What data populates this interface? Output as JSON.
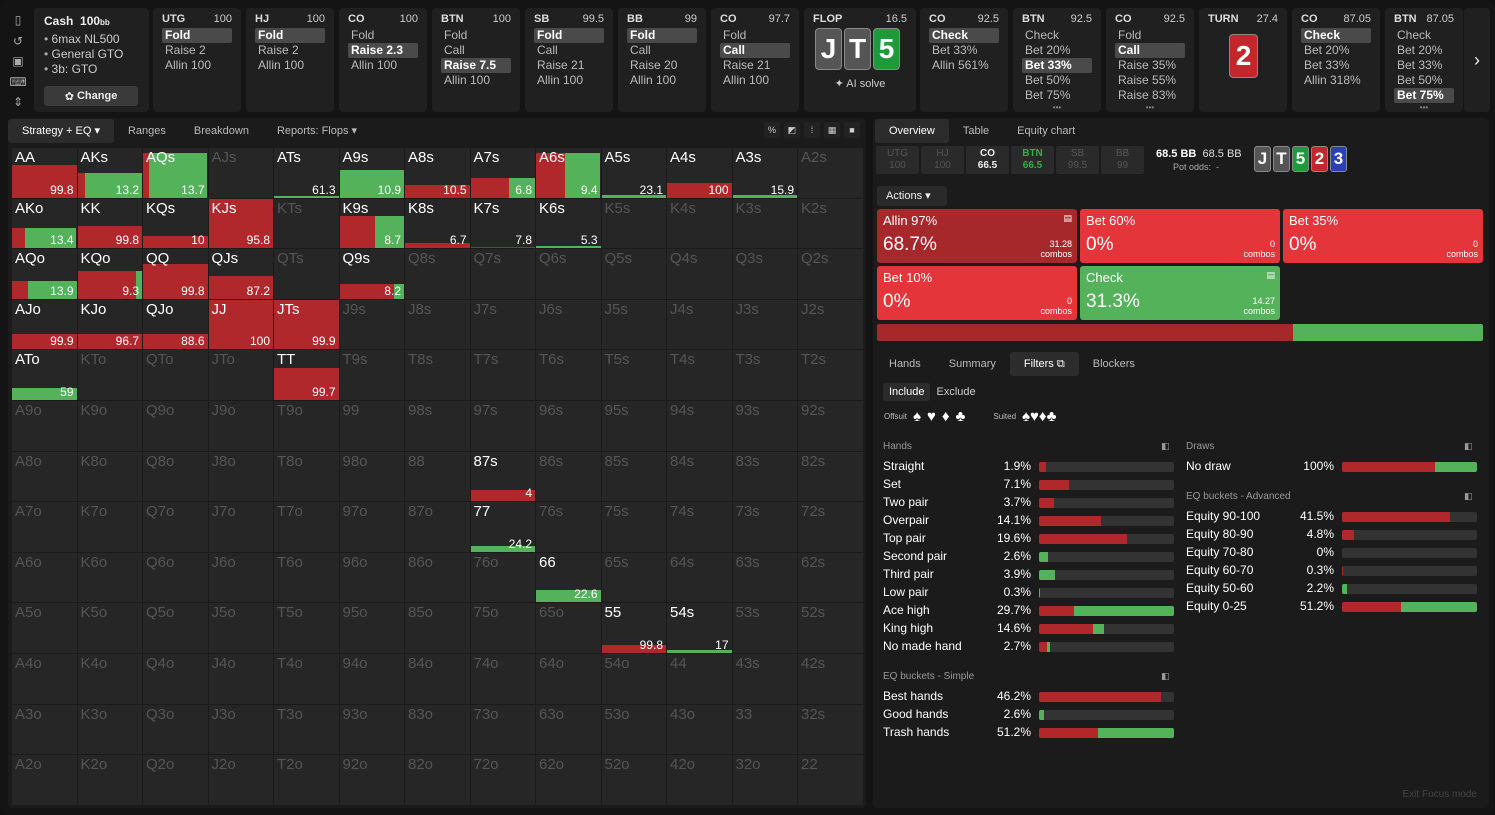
{
  "colors": {
    "raise": "#b0282c",
    "call": "#54b25a",
    "empty": "#262626"
  },
  "icons": [
    "bookmark-icon",
    "history-icon",
    "save-icon",
    "gamepad-icon",
    "expand-icon"
  ],
  "game": {
    "title": "Cash",
    "stack": "100",
    "stack_unit": "bb",
    "lines": [
      "6max NL500",
      "General GTO",
      "3b: GTO"
    ],
    "change": "Change"
  },
  "nodes": [
    {
      "pos": "UTG",
      "stack": "100",
      "actions": [
        "Fold",
        "Raise 2",
        "Allin 100"
      ],
      "sel": 0
    },
    {
      "pos": "HJ",
      "stack": "100",
      "actions": [
        "Fold",
        "Raise 2",
        "Allin 100"
      ],
      "sel": 0
    },
    {
      "pos": "CO",
      "stack": "100",
      "actions": [
        "Fold",
        "Raise 2.3",
        "Allin 100"
      ],
      "sel": 1
    },
    {
      "pos": "BTN",
      "stack": "100",
      "actions": [
        "Fold",
        "Call",
        "Raise 7.5",
        "Allin 100"
      ],
      "sel": 2
    },
    {
      "pos": "SB",
      "stack": "99.5",
      "actions": [
        "Fold",
        "Call",
        "Raise 21",
        "Allin 100"
      ],
      "sel": 0
    },
    {
      "pos": "BB",
      "stack": "99",
      "actions": [
        "Fold",
        "Call",
        "Raise 20",
        "Allin 100"
      ],
      "sel": 0
    },
    {
      "pos": "CO",
      "stack": "97.7",
      "actions": [
        "Fold",
        "Call",
        "Raise 21",
        "Allin 100"
      ],
      "sel": 1
    }
  ],
  "flop": {
    "label": "FLOP",
    "pot": "16.5",
    "cards": [
      "J",
      "T",
      "5"
    ],
    "ai": "AI solve"
  },
  "nodes2": [
    {
      "pos": "CO",
      "stack": "92.5",
      "actions": [
        "Check",
        "Bet 33%",
        "Allin 561%"
      ],
      "sel": 0
    },
    {
      "pos": "BTN",
      "stack": "92.5",
      "actions": [
        "Check",
        "Bet 20%",
        "Bet 33%",
        "Bet 50%",
        "Bet 75%"
      ],
      "sel": 2
    },
    {
      "pos": "CO",
      "stack": "92.5",
      "actions": [
        "Fold",
        "Call",
        "Raise 35%",
        "Raise 55%",
        "Raise 83%"
      ],
      "sel": 1
    }
  ],
  "turn": {
    "label": "TURN",
    "pot": "27.4",
    "card": "2"
  },
  "nodes3": [
    {
      "pos": "CO",
      "stack": "87.05",
      "actions": [
        "Check",
        "Bet 20%",
        "Bet 33%",
        "Allin 318%"
      ],
      "sel": 0
    },
    {
      "pos": "BTN",
      "stack": "87.05",
      "actions": [
        "Check",
        "Bet 20%",
        "Bet 33%",
        "Bet 50%",
        "Bet 75%"
      ],
      "sel": 4
    }
  ],
  "left_tabs": [
    "Strategy + EQ",
    "Ranges",
    "Breakdown",
    "Reports: Flops"
  ],
  "grid": [
    [
      "AA",
      "AKs",
      "AQs",
      "AJs",
      "ATs",
      "A9s",
      "A8s",
      "A7s",
      "A6s",
      "A5s",
      "A4s",
      "A3s",
      "A2s"
    ],
    [
      "AKo",
      "KK",
      "KQs",
      "KJs",
      "KTs",
      "K9s",
      "K8s",
      "K7s",
      "K6s",
      "K5s",
      "K4s",
      "K3s",
      "K2s"
    ],
    [
      "AQo",
      "KQo",
      "QQ",
      "QJs",
      "QTs",
      "Q9s",
      "Q8s",
      "Q7s",
      "Q6s",
      "Q5s",
      "Q4s",
      "Q3s",
      "Q2s"
    ],
    [
      "AJo",
      "KJo",
      "QJo",
      "JJ",
      "JTs",
      "J9s",
      "J8s",
      "J7s",
      "J6s",
      "J5s",
      "J4s",
      "J3s",
      "J2s"
    ],
    [
      "ATo",
      "KTo",
      "QTo",
      "JTo",
      "TT",
      "T9s",
      "T8s",
      "T7s",
      "T6s",
      "T5s",
      "T4s",
      "T3s",
      "T2s"
    ],
    [
      "A9o",
      "K9o",
      "Q9o",
      "J9o",
      "T9o",
      "99",
      "98s",
      "97s",
      "96s",
      "95s",
      "94s",
      "93s",
      "92s"
    ],
    [
      "A8o",
      "K8o",
      "Q8o",
      "J8o",
      "T8o",
      "98o",
      "88",
      "87s",
      "86s",
      "85s",
      "84s",
      "83s",
      "82s"
    ],
    [
      "A7o",
      "K7o",
      "Q7o",
      "J7o",
      "T7o",
      "97o",
      "87o",
      "77",
      "76s",
      "75s",
      "74s",
      "73s",
      "72s"
    ],
    [
      "A6o",
      "K6o",
      "Q6o",
      "J6o",
      "T6o",
      "96o",
      "86o",
      "76o",
      "66",
      "65s",
      "64s",
      "63s",
      "62s"
    ],
    [
      "A5o",
      "K5o",
      "Q5o",
      "J5o",
      "T5o",
      "95o",
      "85o",
      "75o",
      "65o",
      "55",
      "54s",
      "53s",
      "52s"
    ],
    [
      "A4o",
      "K4o",
      "Q4o",
      "J4o",
      "T4o",
      "94o",
      "84o",
      "74o",
      "64o",
      "54o",
      "44",
      "43s",
      "42s"
    ],
    [
      "A3o",
      "K3o",
      "Q3o",
      "J3o",
      "T3o",
      "93o",
      "83o",
      "73o",
      "63o",
      "53o",
      "43o",
      "33",
      "32s"
    ],
    [
      "A2o",
      "K2o",
      "Q2o",
      "J2o",
      "T2o",
      "92o",
      "82o",
      "72o",
      "62o",
      "52o",
      "42o",
      "32o",
      "22"
    ]
  ],
  "cells": {
    "AA": {
      "v": "99.8",
      "h": 0.65,
      "r": 1.0
    },
    "AKs": {
      "v": "13.2",
      "h": 0.5,
      "r": 0.12
    },
    "AQs": {
      "v": "13.7",
      "h": 0.9,
      "r": 0.1
    },
    "ATs": {
      "v": "61.3",
      "h": 0.03,
      "r": 0.0
    },
    "A9s": {
      "v": "10.9",
      "h": 0.55,
      "r": 0.0
    },
    "A8s": {
      "v": "10.5",
      "h": 0.25,
      "r": 1.0
    },
    "A7s": {
      "v": "6.8",
      "h": 0.4,
      "r": 0.6
    },
    "A6s": {
      "v": "9.4",
      "h": 0.9,
      "r": 0.45
    },
    "A5s": {
      "v": "23.1",
      "h": 0.05,
      "r": 0.0
    },
    "A4s": {
      "v": "100",
      "h": 0.3,
      "r": 1.0
    },
    "A3s": {
      "v": "15.9",
      "h": 0.05,
      "r": 0.0
    },
    "AKo": {
      "v": "13.4",
      "h": 0.4,
      "r": 0.2
    },
    "KK": {
      "v": "99.8",
      "h": 0.45,
      "r": 1.0
    },
    "KQs": {
      "v": "10",
      "h": 0.25,
      "r": 1.0
    },
    "KJs": {
      "v": "95.8",
      "h": 1.0,
      "r": 1.0
    },
    "K9s": {
      "v": "8.7",
      "h": 0.65,
      "r": 0.55
    },
    "K8s": {
      "v": "6.7",
      "h": 0.1,
      "r": 1.0
    },
    "K7s": {
      "v": "7.8",
      "h": 0.02,
      "r": 1.0
    },
    "K6s": {
      "v": "5.3",
      "h": 0.05,
      "r": 0.0
    },
    "AQo": {
      "v": "13.9",
      "h": 0.35,
      "r": 0.25
    },
    "KQo": {
      "v": "9.3",
      "h": 0.55,
      "r": 0.9
    },
    "QQ": {
      "v": "99.8",
      "h": 0.7,
      "r": 1.0
    },
    "QJs": {
      "v": "87.2",
      "h": 0.45,
      "r": 1.0
    },
    "Q9s": {
      "v": "8.2",
      "h": 0.3,
      "r": 0.85
    },
    "AJo": {
      "v": "99.9",
      "h": 0.3,
      "r": 1.0
    },
    "KJo": {
      "v": "96.7",
      "h": 0.3,
      "r": 1.0
    },
    "QJo": {
      "v": "88.6",
      "h": 0.3,
      "r": 1.0
    },
    "JJ": {
      "v": "100",
      "h": 1.0,
      "r": 1.0
    },
    "JTs": {
      "v": "99.9",
      "h": 1.0,
      "r": 1.0
    },
    "ATo": {
      "v": "59",
      "h": 0.25,
      "r": 0.0
    },
    "TT": {
      "v": "99.7",
      "h": 0.65,
      "r": 1.0
    },
    "87s": {
      "v": "4",
      "h": 0.22,
      "r": 1.0
    },
    "77": {
      "v": "24.2",
      "h": 0.12,
      "r": 0.0
    },
    "66": {
      "v": "22.6",
      "h": 0.25,
      "r": 0.0
    },
    "55": {
      "v": "99.8",
      "h": 0.15,
      "r": 1.0
    },
    "54s": {
      "v": "17",
      "h": 0.05,
      "r": 0.0
    }
  },
  "right_tabs": [
    "Overview",
    "Table",
    "Equity chart"
  ],
  "positions": [
    {
      "n": "UTG",
      "s": "100"
    },
    {
      "n": "HJ",
      "s": "100"
    },
    {
      "n": "CO",
      "s": "66.5"
    },
    {
      "n": "BTN",
      "s": "66.5"
    },
    {
      "n": "SB",
      "s": "99.5"
    },
    {
      "n": "BB",
      "s": "99"
    }
  ],
  "pot": {
    "line1": "68.5 BB",
    "line1b": "68.5 BB",
    "odds_label": "Pot odds:",
    "odds": "-"
  },
  "board": [
    "J",
    "T",
    "5",
    "2",
    "3"
  ],
  "actions_label": "Actions",
  "action_boxes": [
    {
      "name": "Allin 97%",
      "pct": "68.7%",
      "combos": "31.28",
      "cl": "combos",
      "color": "#a7282b"
    },
    {
      "name": "Bet 60%",
      "pct": "0%",
      "combos": "0",
      "cl": "combos",
      "color": "#e3353a"
    },
    {
      "name": "Bet 35%",
      "pct": "0%",
      "combos": "0",
      "cl": "combos",
      "color": "#e3353a"
    },
    {
      "name": "Bet 10%",
      "pct": "0%",
      "combos": "0",
      "cl": "combos",
      "color": "#e3353a"
    },
    {
      "name": "Check",
      "pct": "31.3%",
      "combos": "14.27",
      "cl": "combos",
      "color": "#54b25a"
    }
  ],
  "summary_bar": [
    {
      "f": 0.687,
      "c": "#a7282b"
    },
    {
      "f": 0.313,
      "c": "#54b25a"
    }
  ],
  "sub_tabs": [
    "Hands",
    "Summary",
    "Filters",
    "Blockers"
  ],
  "include": "Include",
  "exclude": "Exclude",
  "offsuit": "Offsuit",
  "suited": "Suited",
  "hands_title": "Hands",
  "hands": [
    {
      "n": "Straight",
      "p": "1.9%",
      "r": 0.05,
      "g": 0
    },
    {
      "n": "Set",
      "p": "7.1%",
      "r": 0.22,
      "g": 0
    },
    {
      "n": "Two pair",
      "p": "3.7%",
      "r": 0.11,
      "g": 0
    },
    {
      "n": "Overpair",
      "p": "14.1%",
      "r": 0.46,
      "g": 0
    },
    {
      "n": "Top pair",
      "p": "19.6%",
      "r": 0.65,
      "g": 0
    },
    {
      "n": "Second pair",
      "p": "2.6%",
      "r": 0,
      "g": 0.07
    },
    {
      "n": "Third pair",
      "p": "3.9%",
      "r": 0,
      "g": 0.12
    },
    {
      "n": "Low pair",
      "p": "0.3%",
      "r": 0,
      "g": 0.01
    },
    {
      "n": "Ace high",
      "p": "29.7%",
      "r": 0.26,
      "g": 0.74
    },
    {
      "n": "King high",
      "p": "14.6%",
      "r": 0.4,
      "g": 0.08
    },
    {
      "n": "No made hand",
      "p": "2.7%",
      "r": 0.06,
      "g": 0.02
    }
  ],
  "eqs_title": "EQ buckets - Simple",
  "eqs": [
    {
      "n": "Best hands",
      "p": "46.2%",
      "r": 0.9,
      "g": 0
    },
    {
      "n": "Good hands",
      "p": "2.6%",
      "r": 0,
      "g": 0.04
    },
    {
      "n": "Trash hands",
      "p": "51.2%",
      "r": 0.44,
      "g": 0.56
    }
  ],
  "draws_title": "Draws",
  "draws": [
    {
      "n": "No draw",
      "p": "100%",
      "r": 0.69,
      "g": 0.31
    }
  ],
  "eqa_title": "EQ buckets - Advanced",
  "eqa": [
    {
      "n": "Equity 90-100",
      "p": "41.5%",
      "r": 0.8,
      "g": 0
    },
    {
      "n": "Equity 80-90",
      "p": "4.8%",
      "r": 0.09,
      "g": 0
    },
    {
      "n": "Equity 70-80",
      "p": "0%",
      "r": 0,
      "g": 0
    },
    {
      "n": "Equity 60-70",
      "p": "0.3%",
      "r": 0.01,
      "g": 0
    },
    {
      "n": "Equity 50-60",
      "p": "2.2%",
      "r": 0,
      "g": 0.04
    },
    {
      "n": "Equity 0-25",
      "p": "51.2%",
      "r": 0.44,
      "g": 0.56
    }
  ],
  "exit": "Exit Focus mode"
}
